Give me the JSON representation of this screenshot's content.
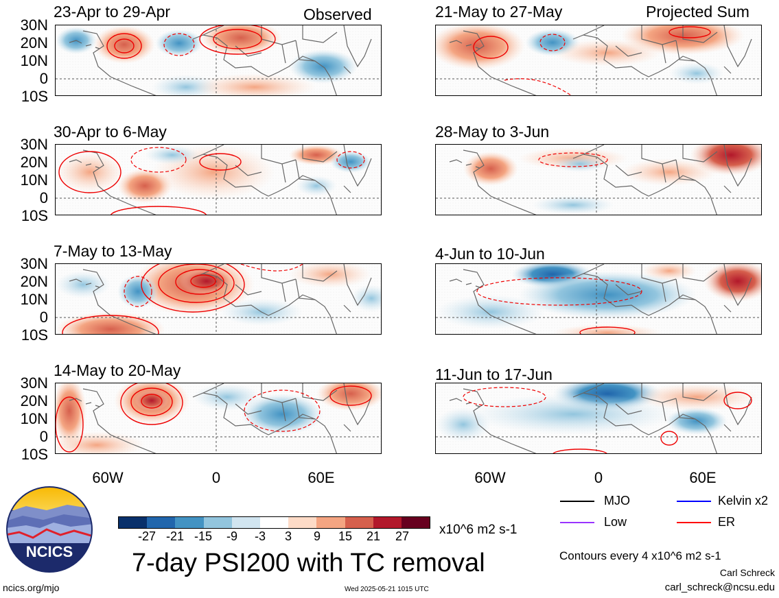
{
  "header": {
    "left_label": "Observed",
    "right_label": "Projected Sum"
  },
  "panels": {
    "obs": [
      "23-Apr to 29-Apr",
      "30-Apr to 6-May",
      "7-May to 13-May",
      "14-May to 20-May"
    ],
    "proj": [
      "21-May to 27-May",
      "28-May to 3-Jun",
      "4-Jun to 10-Jun",
      "11-Jun to 17-Jun"
    ]
  },
  "latitude_labels": [
    "30N",
    "20N",
    "10N",
    "0",
    "10S"
  ],
  "longitude_labels": [
    "60W",
    "0",
    "60E"
  ],
  "colorbar": {
    "labels": [
      "-27",
      "-21",
      "-15",
      "-9",
      "-3",
      "3",
      "9",
      "15",
      "21",
      "27"
    ],
    "units": "x10^6 m2 s-1",
    "colors": [
      "#08306b",
      "#2166ac",
      "#4393c3",
      "#92c5de",
      "#d1e5f0",
      "#ffffff",
      "#fddbc7",
      "#f4a582",
      "#d6604d",
      "#b2182b",
      "#67001f"
    ]
  },
  "title": "7-day PSI200 with TC removal",
  "legend": [
    {
      "label": "MJO",
      "color": "#000000"
    },
    {
      "label": "Kelvin x2",
      "color": "#0000ff"
    },
    {
      "label": "Low",
      "color": "#9933ff"
    },
    {
      "label": "ER",
      "color": "#ff0000"
    }
  ],
  "contour_note": "Contours every 4 x10^6 m2 s-1",
  "author": "Carl Schreck",
  "email": "carl_schreck@ncsu.edu",
  "website": "ncics.org/mjo",
  "timestamp": "Wed 2025-05-21 1015 UTC",
  "logo_text": "NCICS"
}
